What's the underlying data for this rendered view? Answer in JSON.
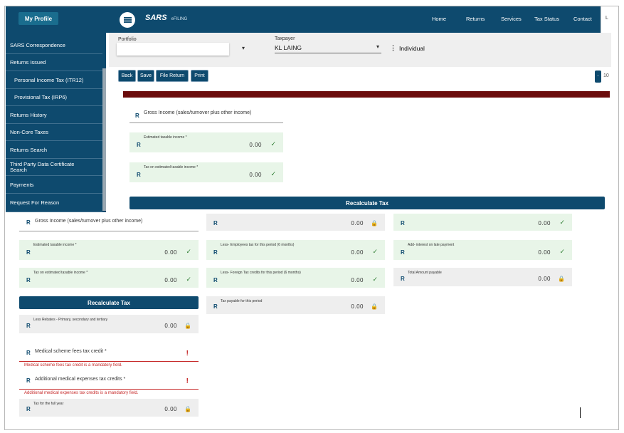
{
  "sidebar": {
    "profile_label": "My Profile",
    "items": [
      {
        "label": "SARS Correspondence"
      },
      {
        "label": "Returns Issued"
      },
      {
        "label": "Personal Income Tax (ITR12)"
      },
      {
        "label": "Provisional Tax (IRP6)"
      },
      {
        "label": "Returns History"
      },
      {
        "label": "Non-Core Taxes"
      },
      {
        "label": "Returns Search"
      },
      {
        "label": "Third Party Data Certificate Search"
      },
      {
        "label": "Payments"
      },
      {
        "label": "Request For Reason"
      }
    ]
  },
  "header": {
    "logo": "SARS",
    "logo_sub": "eFILING",
    "nav": [
      "Home",
      "Returns",
      "Services",
      "Tax Status",
      "Contact"
    ],
    "nav_overflow": "L"
  },
  "filters": {
    "portfolio_label": "Portfolio",
    "taxpayer_label": "Taxpayer",
    "taxpayer_value": "KL LAING",
    "taxpayer_type": "Individual"
  },
  "actions": {
    "back": "Back",
    "save": "Save",
    "file_return": "File Return",
    "print": "Print",
    "right_text": "10"
  },
  "upper": {
    "gross_income": {
      "currency": "R",
      "label": "Gross Income (sales/turnover plus other income)"
    },
    "estimated_taxable": {
      "currency": "R",
      "label": "Estimated taxable income *",
      "value": "0.00"
    },
    "tax_on_estimated": {
      "currency": "R",
      "label": "Tax on estimated taxable income *",
      "value": "0.00"
    },
    "recalc": "Recalculate Tax"
  },
  "lower": {
    "col1": {
      "gross_income": {
        "currency": "R",
        "label": "Gross Income (sales/turnover plus other income)"
      },
      "estimated_taxable": {
        "currency": "R",
        "label": "Estimated taxable income *",
        "value": "0.00"
      },
      "tax_on_estimated": {
        "currency": "R",
        "label": "Tax on estimated taxable income *",
        "value": "0.00"
      },
      "recalc": "Recalculate Tax",
      "less_rebates": {
        "currency": "R",
        "label": "Less Rebates - Primary, secondary and tertiary",
        "value": "0.00"
      },
      "medical_credit": {
        "currency": "R",
        "label": "Medical scheme fees tax credit *",
        "error": "Medical scheme fees tax credit is a mandatory field."
      },
      "additional_medical": {
        "currency": "R",
        "label": "Additional medical expenses tax credits *",
        "error": "Additional medical expenses tax credits is a mandatory field."
      },
      "tax_full_year": {
        "currency": "R",
        "label": "Tax for the full year",
        "value": "0.00"
      }
    },
    "col2": {
      "top": {
        "currency": "R",
        "value": "0.00"
      },
      "employees_tax": {
        "currency": "R",
        "label": "Less- Employees tax for this period (6 months)",
        "value": "0.00"
      },
      "foreign_tax": {
        "currency": "R",
        "label": "Less- Foreign Tax credits for this period (6 months)",
        "value": "0.00"
      },
      "tax_payable": {
        "currency": "R",
        "label": "Tax payable for this period",
        "value": "0.00"
      }
    },
    "col3": {
      "top": {
        "currency": "R",
        "value": "0.00"
      },
      "interest": {
        "currency": "R",
        "label": "Add- interest on late payment",
        "value": "0.00"
      },
      "total_payable": {
        "currency": "R",
        "label": "Total Amount payable",
        "value": "0.00"
      }
    }
  },
  "colors": {
    "primary": "#0e4a6e",
    "accent_bar": "#6b0c0c",
    "valid_bg": "#e8f5e8",
    "error": "#c62828"
  },
  "icons": {
    "valid": "check-icon",
    "locked": "lock-icon",
    "error": "exclamation-icon",
    "menu": "hamburger-icon",
    "dropdown": "chevron-down-icon"
  }
}
